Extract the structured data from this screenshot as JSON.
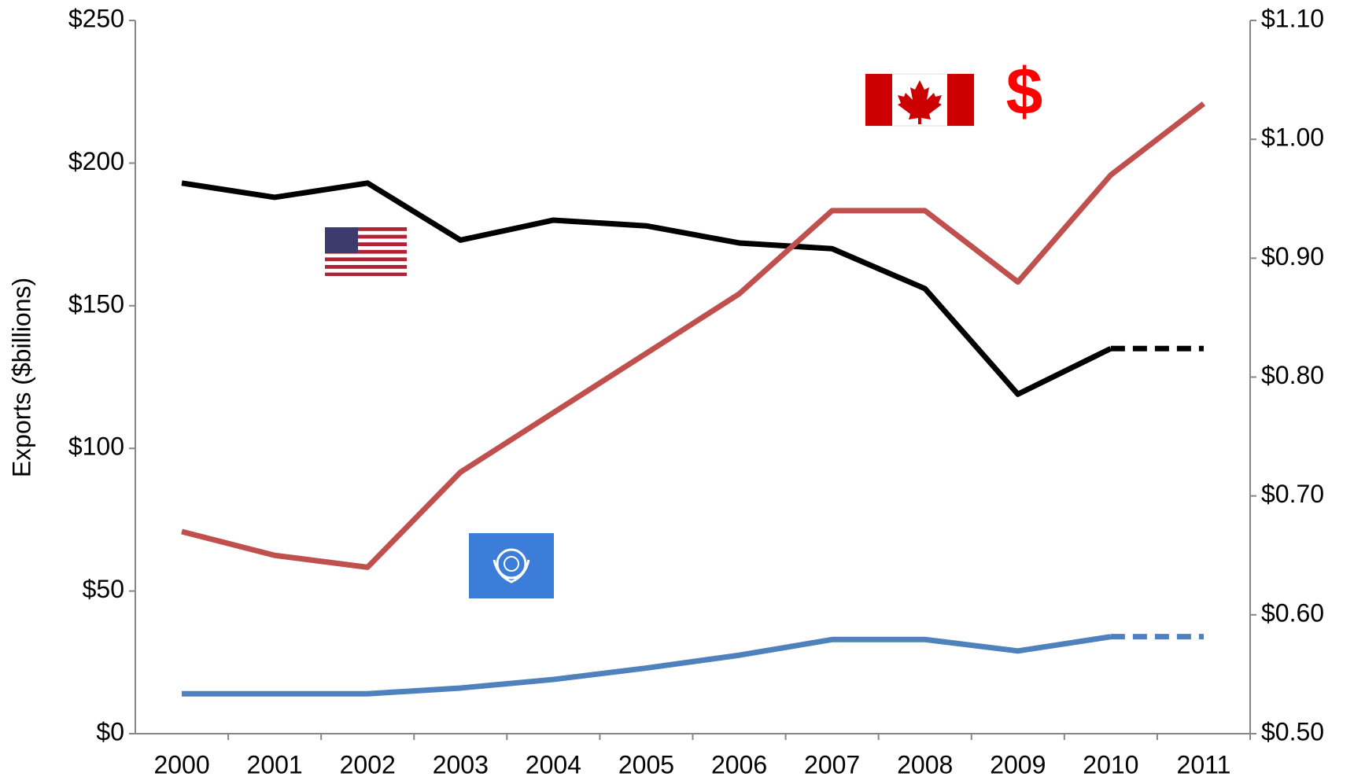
{
  "chart_data": {
    "type": "line",
    "y_label": "Exports ($billions)",
    "categories": [
      "2000",
      "2001",
      "2002",
      "2003",
      "2004",
      "2005",
      "2006",
      "2007",
      "2008",
      "2009",
      "2010",
      "2011"
    ],
    "series": [
      {
        "color": "#000000",
        "values": [
          193,
          188,
          193,
          173,
          180,
          178,
          172,
          170,
          156,
          119,
          135,
          135
        ],
        "dash_from": 10
      },
      {
        "color": "#c0504d",
        "axis": "y2",
        "values": [
          0.67,
          0.65,
          0.64,
          0.72,
          0.77,
          0.82,
          0.87,
          0.94,
          0.94,
          0.88,
          0.97,
          1.03
        ]
      },
      {
        "color": "#4f81bd",
        "values": [
          14,
          14,
          14,
          16,
          19,
          23,
          27.5,
          33,
          33,
          29,
          34,
          34
        ],
        "dash_from": 10
      }
    ],
    "ylim": [
      0,
      250
    ],
    "yticks": [
      {
        "value": 0,
        "label": "$0"
      },
      {
        "value": 50,
        "label": "$50"
      },
      {
        "value": 100,
        "label": "$100"
      },
      {
        "value": 150,
        "label": "$150"
      },
      {
        "value": 200,
        "label": "$200"
      },
      {
        "value": 250,
        "label": "$250"
      }
    ],
    "y2lim": [
      0.5,
      1.1
    ],
    "y2ticks": [
      {
        "value": 0.5,
        "label": "$0.50"
      },
      {
        "value": 0.6,
        "label": "$0.60"
      },
      {
        "value": 0.7,
        "label": "$0.70"
      },
      {
        "value": 0.8,
        "label": "$0.80"
      },
      {
        "value": 0.9,
        "label": "$0.90"
      },
      {
        "value": 1.0,
        "label": "$1.00"
      },
      {
        "value": 1.1,
        "label": "$1.10"
      }
    ],
    "annotation": "$",
    "annotation_color": "#ff0000",
    "grid": false
  }
}
